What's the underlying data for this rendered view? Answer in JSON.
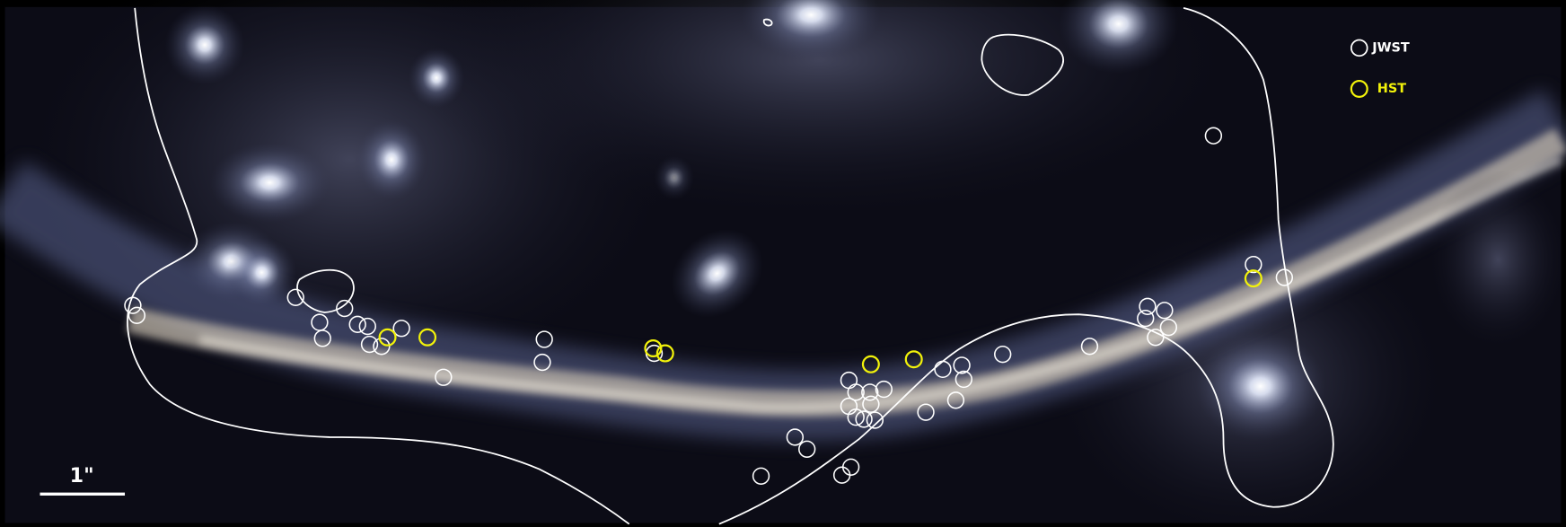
{
  "legend": {
    "items": [
      {
        "label": "JWST"
      },
      {
        "label": "HST"
      }
    ]
  },
  "scale_bar": {
    "label": "1\""
  }
}
